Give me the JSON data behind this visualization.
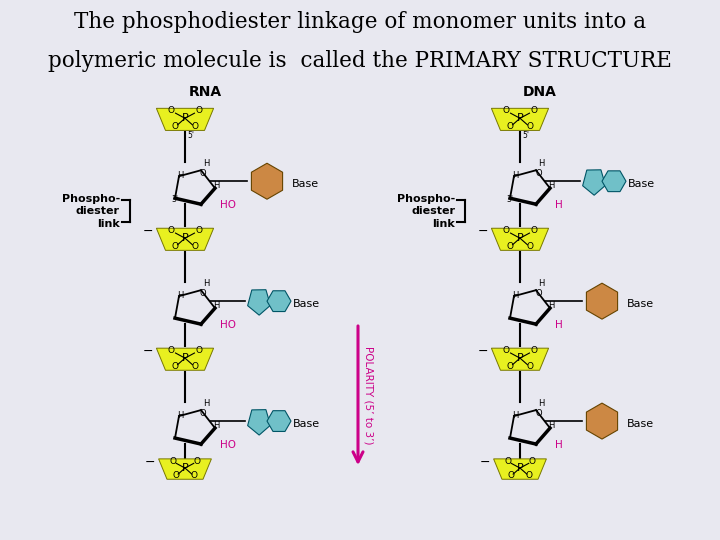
{
  "title_line1": "The phosphodiester linkage of monomer units into a",
  "title_line2": "polymeric molecule is  called the PRIMARY STRUCTURE",
  "bg_color": "#e8e8f0",
  "title_bg": "#ffffff",
  "diagram_bg": "#e8e8f2",
  "yellow": "#e8f020",
  "cyan": "#70c0c8",
  "orange": "#cc8844",
  "magenta": "#cc0088",
  "black": "#000000",
  "white": "#ffffff",
  "gray": "#888888",
  "rna_label": "RNA",
  "dna_label": "DNA",
  "phospho_text": "Phospho-\ndiester\nlink",
  "polarity_text": "POLARITY (5’ to 3’)",
  "base_text": "Base",
  "ho_text": "HO",
  "h_text": "H"
}
